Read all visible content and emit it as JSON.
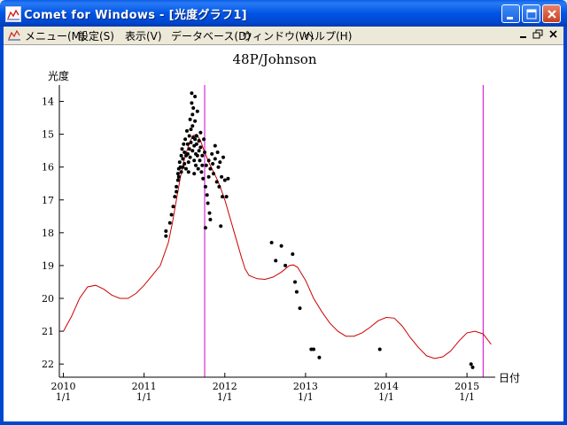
{
  "window": {
    "title": "Comet for Windows - [光度グラフ1]",
    "title_bar_color": "#0055e5",
    "close_color": "#c8401e"
  },
  "menu": {
    "items": [
      "メニュー(M)",
      "設定(S)",
      "表示(V)",
      "データベース(D)",
      "ウィンドウ(W)",
      "ヘルプ(H)"
    ]
  },
  "chart_data": {
    "type": "scatter",
    "title": "48P/Johnson",
    "ylabel": "光度",
    "xlabel": "日付",
    "y_inverted": true,
    "ylim": [
      22.4,
      13.5
    ],
    "xlim": [
      2009.95,
      2015.35
    ],
    "yticks": [
      14,
      15,
      16,
      17,
      18,
      19,
      20,
      21,
      22
    ],
    "xticks": [
      {
        "x": 2010,
        "year": "2010",
        "md": "1/1"
      },
      {
        "x": 2011,
        "year": "2011",
        "md": "1/1"
      },
      {
        "x": 2012,
        "year": "2012",
        "md": "1/1"
      },
      {
        "x": 2013,
        "year": "2013",
        "md": "1/1"
      },
      {
        "x": 2014,
        "year": "2014",
        "md": "1/1"
      },
      {
        "x": 2015,
        "year": "2015",
        "md": "1/1"
      }
    ],
    "vertical_lines": [
      2011.75,
      2015.2
    ],
    "colors": {
      "observations": "#000000",
      "model": "#cc0000",
      "markers": "#cc00cc",
      "axis": "#000000"
    },
    "model_curve": [
      [
        2010.0,
        21.0
      ],
      [
        2010.1,
        20.55
      ],
      [
        2010.2,
        20.0
      ],
      [
        2010.3,
        19.65
      ],
      [
        2010.4,
        19.6
      ],
      [
        2010.5,
        19.72
      ],
      [
        2010.6,
        19.9
      ],
      [
        2010.7,
        20.0
      ],
      [
        2010.8,
        20.0
      ],
      [
        2010.9,
        19.85
      ],
      [
        2011.0,
        19.6
      ],
      [
        2011.1,
        19.3
      ],
      [
        2011.2,
        19.0
      ],
      [
        2011.3,
        18.3
      ],
      [
        2011.35,
        17.7
      ],
      [
        2011.4,
        17.0
      ],
      [
        2011.45,
        16.3
      ],
      [
        2011.5,
        15.75
      ],
      [
        2011.55,
        15.35
      ],
      [
        2011.6,
        15.05
      ],
      [
        2011.65,
        15.0
      ],
      [
        2011.7,
        15.2
      ],
      [
        2011.75,
        15.55
      ],
      [
        2011.8,
        15.85
      ],
      [
        2011.85,
        16.1
      ],
      [
        2011.9,
        16.35
      ],
      [
        2011.95,
        16.65
      ],
      [
        2012.0,
        17.0
      ],
      [
        2012.1,
        17.85
      ],
      [
        2012.2,
        18.7
      ],
      [
        2012.25,
        19.1
      ],
      [
        2012.3,
        19.3
      ],
      [
        2012.4,
        19.4
      ],
      [
        2012.5,
        19.42
      ],
      [
        2012.6,
        19.35
      ],
      [
        2012.7,
        19.2
      ],
      [
        2012.8,
        19.0
      ],
      [
        2012.85,
        18.98
      ],
      [
        2012.9,
        19.05
      ],
      [
        2013.0,
        19.45
      ],
      [
        2013.1,
        20.0
      ],
      [
        2013.2,
        20.4
      ],
      [
        2013.3,
        20.75
      ],
      [
        2013.4,
        21.0
      ],
      [
        2013.5,
        21.15
      ],
      [
        2013.6,
        21.15
      ],
      [
        2013.7,
        21.05
      ],
      [
        2013.8,
        20.88
      ],
      [
        2013.9,
        20.68
      ],
      [
        2014.0,
        20.58
      ],
      [
        2014.1,
        20.6
      ],
      [
        2014.2,
        20.85
      ],
      [
        2014.3,
        21.2
      ],
      [
        2014.4,
        21.5
      ],
      [
        2014.5,
        21.75
      ],
      [
        2014.6,
        21.83
      ],
      [
        2014.7,
        21.78
      ],
      [
        2014.8,
        21.6
      ],
      [
        2014.9,
        21.3
      ],
      [
        2015.0,
        21.05
      ],
      [
        2015.1,
        21.0
      ],
      [
        2015.2,
        21.08
      ],
      [
        2015.3,
        21.4
      ]
    ],
    "observations": [
      [
        2011.27,
        17.95
      ],
      [
        2011.27,
        18.1
      ],
      [
        2011.32,
        17.7
      ],
      [
        2011.34,
        17.45
      ],
      [
        2011.36,
        17.2
      ],
      [
        2011.38,
        16.9
      ],
      [
        2011.4,
        16.6
      ],
      [
        2011.4,
        16.75
      ],
      [
        2011.42,
        16.2
      ],
      [
        2011.42,
        16.4
      ],
      [
        2011.43,
        16.05
      ],
      [
        2011.43,
        16.3
      ],
      [
        2011.44,
        15.85
      ],
      [
        2011.45,
        16.0
      ],
      [
        2011.46,
        15.65
      ],
      [
        2011.46,
        16.15
      ],
      [
        2011.47,
        15.45
      ],
      [
        2011.48,
        15.75
      ],
      [
        2011.48,
        16.0
      ],
      [
        2011.49,
        15.3
      ],
      [
        2011.5,
        15.55
      ],
      [
        2011.5,
        15.9
      ],
      [
        2011.51,
        15.15
      ],
      [
        2011.52,
        15.65
      ],
      [
        2011.52,
        16.05
      ],
      [
        2011.53,
        14.9
      ],
      [
        2011.54,
        15.3
      ],
      [
        2011.54,
        15.6
      ],
      [
        2011.55,
        15.85
      ],
      [
        2011.55,
        16.15
      ],
      [
        2011.56,
        15.05
      ],
      [
        2011.56,
        15.45
      ],
      [
        2011.57,
        14.55
      ],
      [
        2011.57,
        15.7
      ],
      [
        2011.58,
        14.85
      ],
      [
        2011.58,
        15.25
      ],
      [
        2011.59,
        13.75
      ],
      [
        2011.59,
        14.05
      ],
      [
        2011.6,
        14.4
      ],
      [
        2011.6,
        14.75
      ],
      [
        2011.6,
        15.5
      ],
      [
        2011.61,
        14.2
      ],
      [
        2011.61,
        15.1
      ],
      [
        2011.62,
        15.35
      ],
      [
        2011.62,
        15.8
      ],
      [
        2011.62,
        16.2
      ],
      [
        2011.63,
        13.85
      ],
      [
        2011.63,
        14.6
      ],
      [
        2011.63,
        15.15
      ],
      [
        2011.64,
        15.6
      ],
      [
        2011.64,
        15.95
      ],
      [
        2011.65,
        15.05
      ],
      [
        2011.65,
        15.3
      ],
      [
        2011.66,
        14.3
      ],
      [
        2011.66,
        15.65
      ],
      [
        2011.67,
        16.05
      ],
      [
        2011.68,
        15.2
      ],
      [
        2011.68,
        15.5
      ],
      [
        2011.69,
        15.8
      ],
      [
        2011.7,
        14.95
      ],
      [
        2011.7,
        15.4
      ],
      [
        2011.71,
        16.15
      ],
      [
        2011.72,
        15.65
      ],
      [
        2011.72,
        15.95
      ],
      [
        2011.73,
        16.35
      ],
      [
        2011.74,
        15.15
      ],
      [
        2011.75,
        15.55
      ],
      [
        2011.76,
        16.6
      ],
      [
        2011.77,
        15.95
      ],
      [
        2011.78,
        16.85
      ],
      [
        2011.79,
        17.1
      ],
      [
        2011.8,
        15.8
      ],
      [
        2011.8,
        16.3
      ],
      [
        2011.81,
        17.4
      ],
      [
        2011.82,
        17.6
      ],
      [
        2011.82,
        16.05
      ],
      [
        2011.84,
        15.6
      ],
      [
        2011.85,
        15.9
      ],
      [
        2011.86,
        16.2
      ],
      [
        2011.88,
        15.35
      ],
      [
        2011.88,
        15.75
      ],
      [
        2011.9,
        16.45
      ],
      [
        2011.91,
        15.55
      ],
      [
        2011.92,
        16.0
      ],
      [
        2011.93,
        16.6
      ],
      [
        2011.94,
        15.85
      ],
      [
        2011.95,
        17.8
      ],
      [
        2011.96,
        16.3
      ],
      [
        2011.97,
        16.9
      ],
      [
        2011.98,
        15.7
      ],
      [
        2012.0,
        16.4
      ],
      [
        2012.02,
        16.9
      ],
      [
        2012.04,
        16.35
      ],
      [
        2011.76,
        17.85
      ],
      [
        2012.58,
        18.3
      ],
      [
        2012.63,
        18.85
      ],
      [
        2012.7,
        18.4
      ],
      [
        2012.75,
        19.0
      ],
      [
        2012.84,
        18.65
      ],
      [
        2012.87,
        19.5
      ],
      [
        2012.89,
        19.8
      ],
      [
        2012.93,
        20.3
      ],
      [
        2013.07,
        21.55
      ],
      [
        2013.1,
        21.55
      ],
      [
        2013.17,
        21.8
      ],
      [
        2013.92,
        21.55
      ],
      [
        2015.05,
        22.0
      ],
      [
        2015.07,
        22.1
      ]
    ]
  }
}
